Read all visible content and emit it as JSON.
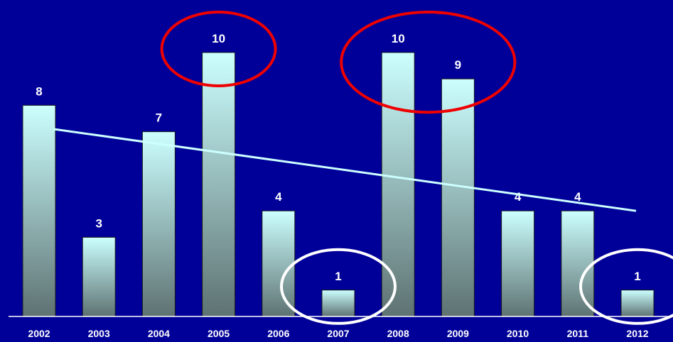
{
  "chart_data": {
    "type": "bar",
    "categories": [
      "2002",
      "2003",
      "2004",
      "2005",
      "2006",
      "2007",
      "2008",
      "2009",
      "2010",
      "2011",
      "2012"
    ],
    "values": [
      8,
      3,
      7,
      10,
      4,
      1,
      10,
      9,
      4,
      4,
      1
    ],
    "title": "",
    "xlabel": "",
    "ylabel": "",
    "ylim": [
      0,
      10
    ],
    "grid": false,
    "legend": "none",
    "trendline": {
      "type": "linear",
      "start": 7.1,
      "end": 4.0
    },
    "highlights": [
      {
        "categories": [
          "2005"
        ],
        "color": "#ee0000"
      },
      {
        "categories": [
          "2008",
          "2009"
        ],
        "color": "#ee0000"
      },
      {
        "categories": [
          "2007"
        ],
        "color": "#ffffff"
      },
      {
        "categories": [
          "2012"
        ],
        "color": "#ffffff"
      }
    ],
    "colors": {
      "background": "#000099",
      "bar_top": "#ccffff",
      "bar_bottom": "#5e7272",
      "trendline": "#ccffff",
      "text": "#ffffff"
    }
  }
}
